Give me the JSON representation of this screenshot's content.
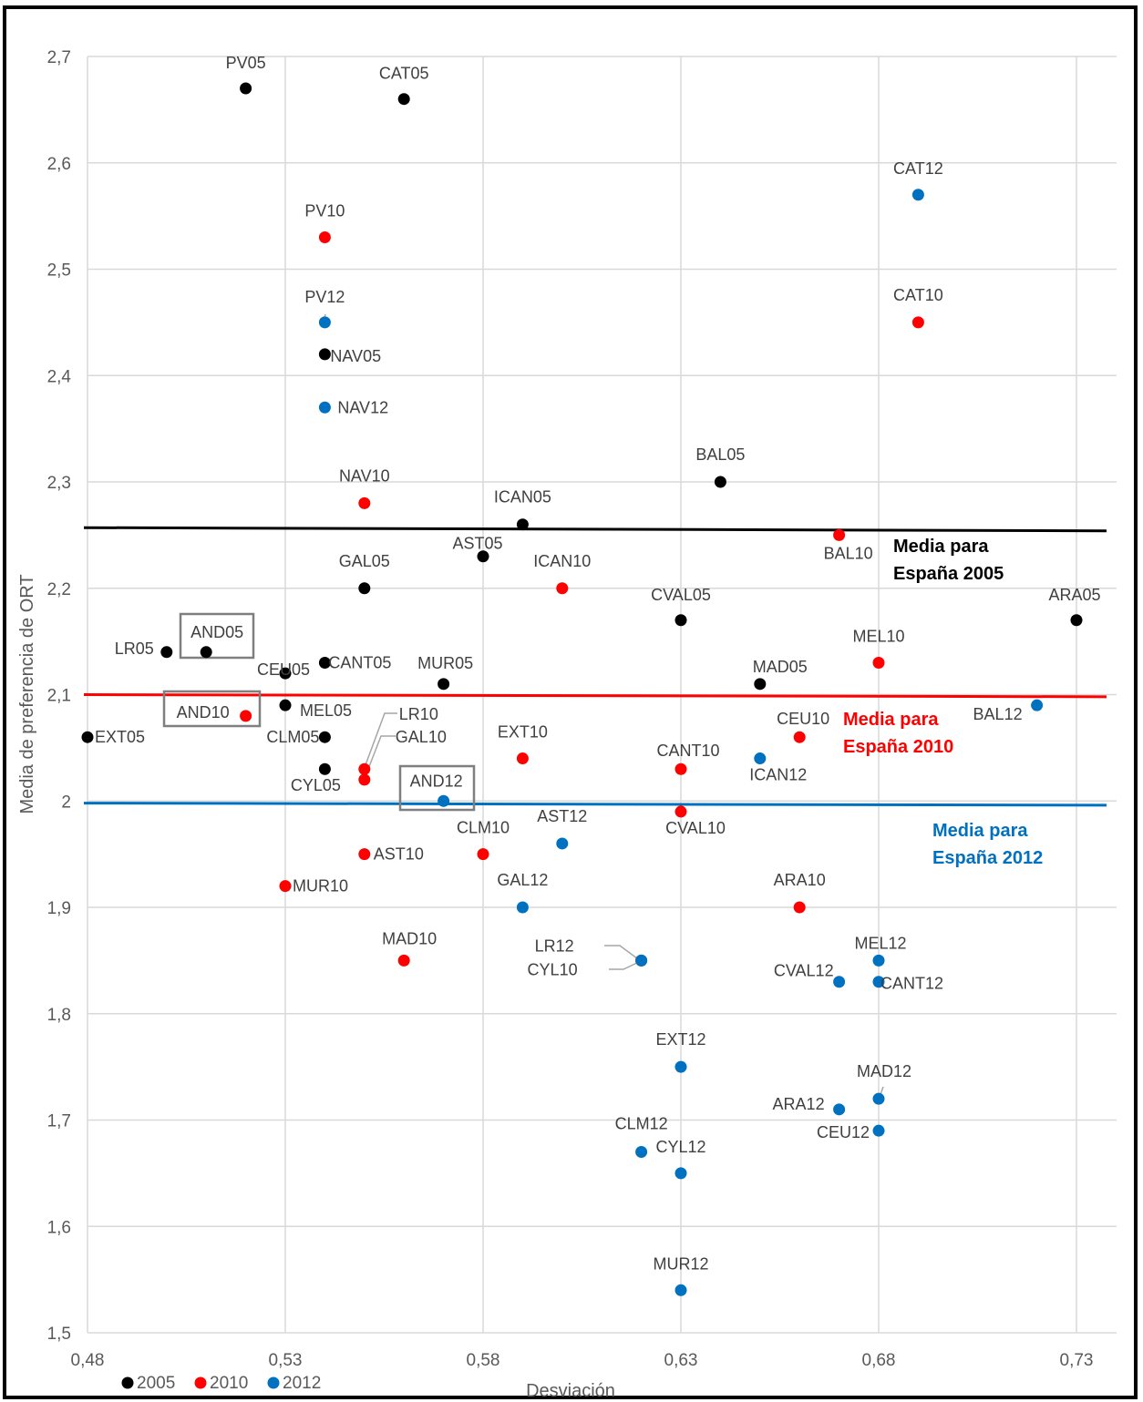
{
  "chart_data": {
    "type": "scatter",
    "xlabel": "Desviación",
    "ylabel": "Media de preferencia de ORT",
    "xlim": [
      0.48,
      0.735
    ],
    "ylim": [
      1.5,
      2.7
    ],
    "x_ticks": [
      "0,48",
      "0,53",
      "0,58",
      "0,63",
      "0,68",
      "0,73"
    ],
    "y_ticks": [
      "1,5",
      "1,6",
      "1,7",
      "1,8",
      "1,9",
      "2",
      "2,1",
      "2,2",
      "2,3",
      "2,4",
      "2,5",
      "2,6",
      "2,7"
    ],
    "grid": true,
    "legend": [
      "2005",
      "2010",
      "2012"
    ],
    "colors": {
      "2005": "#000000",
      "2010": "#ff0000",
      "2012": "#0070c0"
    },
    "series": [
      {
        "name": "2005",
        "points": [
          {
            "label": "PV05",
            "x": 0.52,
            "y": 2.67
          },
          {
            "label": "CAT05",
            "x": 0.56,
            "y": 2.66
          },
          {
            "label": "NAV05",
            "x": 0.54,
            "y": 2.42
          },
          {
            "label": "BAL05",
            "x": 0.64,
            "y": 2.3
          },
          {
            "label": "ICAN05",
            "x": 0.59,
            "y": 2.26
          },
          {
            "label": "AST05",
            "x": 0.58,
            "y": 2.23
          },
          {
            "label": "GAL05",
            "x": 0.55,
            "y": 2.2
          },
          {
            "label": "CVAL05",
            "x": 0.63,
            "y": 2.17
          },
          {
            "label": "ARA05",
            "x": 0.73,
            "y": 2.17
          },
          {
            "label": "LR05",
            "x": 0.5,
            "y": 2.14
          },
          {
            "label": "AND05",
            "x": 0.51,
            "y": 2.14
          },
          {
            "label": "CANT05",
            "x": 0.54,
            "y": 2.13
          },
          {
            "label": "CEU05",
            "x": 0.53,
            "y": 2.12
          },
          {
            "label": "MUR05",
            "x": 0.57,
            "y": 2.11
          },
          {
            "label": "MAD05",
            "x": 0.65,
            "y": 2.11
          },
          {
            "label": "MEL05",
            "x": 0.53,
            "y": 2.09
          },
          {
            "label": "CLM05",
            "x": 0.54,
            "y": 2.06
          },
          {
            "label": "EXT05",
            "x": 0.48,
            "y": 2.06
          },
          {
            "label": "CYL05",
            "x": 0.54,
            "y": 2.03
          }
        ]
      },
      {
        "name": "2010",
        "points": [
          {
            "label": "PV10",
            "x": 0.54,
            "y": 2.53
          },
          {
            "label": "CAT10",
            "x": 0.69,
            "y": 2.45
          },
          {
            "label": "NAV10",
            "x": 0.55,
            "y": 2.28
          },
          {
            "label": "BAL10",
            "x": 0.67,
            "y": 2.25
          },
          {
            "label": "ICAN10",
            "x": 0.6,
            "y": 2.2
          },
          {
            "label": "MEL10",
            "x": 0.68,
            "y": 2.13
          },
          {
            "label": "AND10",
            "x": 0.52,
            "y": 2.08
          },
          {
            "label": "CEU10",
            "x": 0.66,
            "y": 2.06
          },
          {
            "label": "EXT10",
            "x": 0.59,
            "y": 2.04
          },
          {
            "label": "LR10",
            "x": 0.55,
            "y": 2.03
          },
          {
            "label": "GAL10",
            "x": 0.55,
            "y": 2.02
          },
          {
            "label": "CANT10",
            "x": 0.63,
            "y": 2.03
          },
          {
            "label": "CVAL10",
            "x": 0.63,
            "y": 1.99
          },
          {
            "label": "AST10",
            "x": 0.55,
            "y": 1.95
          },
          {
            "label": "CLM10",
            "x": 0.58,
            "y": 1.95
          },
          {
            "label": "MUR10",
            "x": 0.53,
            "y": 1.92
          },
          {
            "label": "ARA10",
            "x": 0.66,
            "y": 1.9
          },
          {
            "label": "MAD10",
            "x": 0.56,
            "y": 1.85
          },
          {
            "label": "CYL10",
            "x": 0.62,
            "y": 1.85
          }
        ]
      },
      {
        "name": "2012",
        "points": [
          {
            "label": "CAT12",
            "x": 0.69,
            "y": 2.57
          },
          {
            "label": "PV12",
            "x": 0.54,
            "y": 2.45
          },
          {
            "label": "NAV12",
            "x": 0.54,
            "y": 2.37
          },
          {
            "label": "BAL12",
            "x": 0.72,
            "y": 2.09
          },
          {
            "label": "ICAN12",
            "x": 0.65,
            "y": 2.04
          },
          {
            "label": "AND12",
            "x": 0.57,
            "y": 2.0
          },
          {
            "label": "AST12",
            "x": 0.6,
            "y": 1.96
          },
          {
            "label": "GAL12",
            "x": 0.59,
            "y": 1.9
          },
          {
            "label": "LR12",
            "x": 0.62,
            "y": 1.85
          },
          {
            "label": "MEL12",
            "x": 0.68,
            "y": 1.85
          },
          {
            "label": "CVAL12",
            "x": 0.67,
            "y": 1.83
          },
          {
            "label": "CANT12",
            "x": 0.68,
            "y": 1.83
          },
          {
            "label": "EXT12",
            "x": 0.63,
            "y": 1.75
          },
          {
            "label": "MAD12",
            "x": 0.68,
            "y": 1.72
          },
          {
            "label": "ARA12",
            "x": 0.67,
            "y": 1.71
          },
          {
            "label": "CEU12",
            "x": 0.68,
            "y": 1.69
          },
          {
            "label": "CLM12",
            "x": 0.62,
            "y": 1.67
          },
          {
            "label": "CYL12",
            "x": 0.63,
            "y": 1.65
          },
          {
            "label": "MUR12",
            "x": 0.63,
            "y": 1.54
          }
        ]
      }
    ],
    "reference_lines": [
      {
        "series": "2005",
        "label_line1": "Media para",
        "label_line2": "España 2005",
        "y_start": 2.257,
        "y_end": 2.254
      },
      {
        "series": "2010",
        "label_line1": "Media para",
        "label_line2": "España 2010",
        "y_start": 2.1,
        "y_end": 2.098
      },
      {
        "series": "2012",
        "label_line1": "Media para",
        "label_line2": "España 2012",
        "y_start": 1.998,
        "y_end": 1.996
      }
    ],
    "highlighted": [
      "AND05",
      "AND10",
      "AND12"
    ]
  }
}
